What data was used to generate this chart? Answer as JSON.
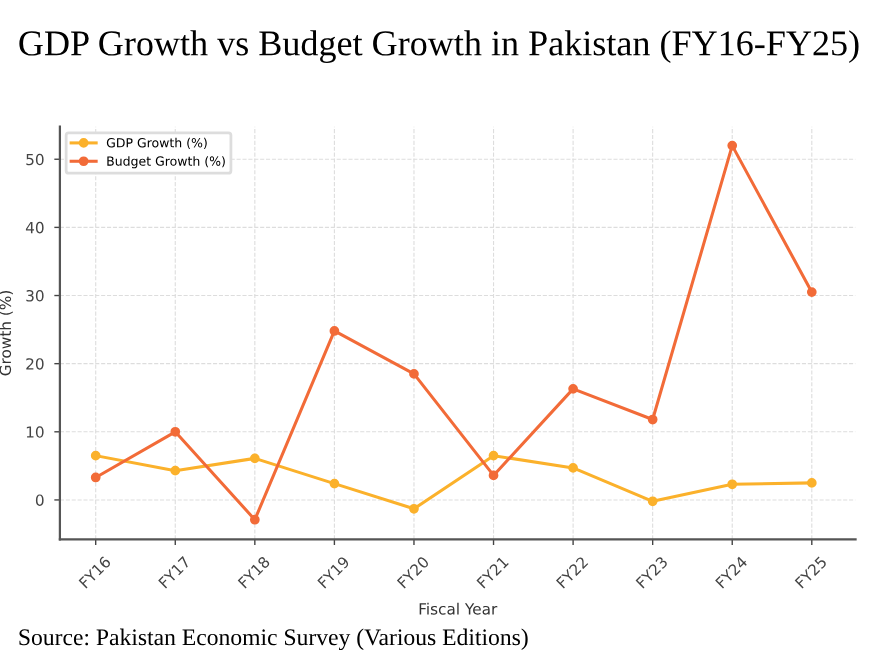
{
  "chart_data": {
    "type": "line",
    "title": "GDP Growth vs Budget Growth in Pakistan (FY16-FY25)",
    "xlabel": "Fiscal Year",
    "ylabel": "Growth (%)",
    "categories": [
      "FY16",
      "FY17",
      "FY18",
      "FY19",
      "FY20",
      "FY21",
      "FY22",
      "FY23",
      "FY24",
      "FY25"
    ],
    "series": [
      {
        "name": "GDP Growth (%)",
        "color": "#fbb12b",
        "values": [
          6.5,
          4.3,
          6.1,
          2.4,
          -1.3,
          6.5,
          4.7,
          -0.2,
          2.3,
          2.5
        ]
      },
      {
        "name": "Budget Growth (%)",
        "color": "#f26b38",
        "values": [
          3.3,
          10,
          -2.9,
          24.8,
          18.5,
          3.6,
          16.3,
          11.8,
          52,
          30.5
        ]
      }
    ],
    "ylim": [
      -5.8,
      54.8
    ],
    "yticks": [
      0,
      10,
      20,
      30,
      40,
      50
    ],
    "grid": true,
    "legend": "top left",
    "marker": "circle",
    "line_style": "solid",
    "annotations": [
      "Source: Pakistan Economic Survey (Various Editions)"
    ]
  }
}
